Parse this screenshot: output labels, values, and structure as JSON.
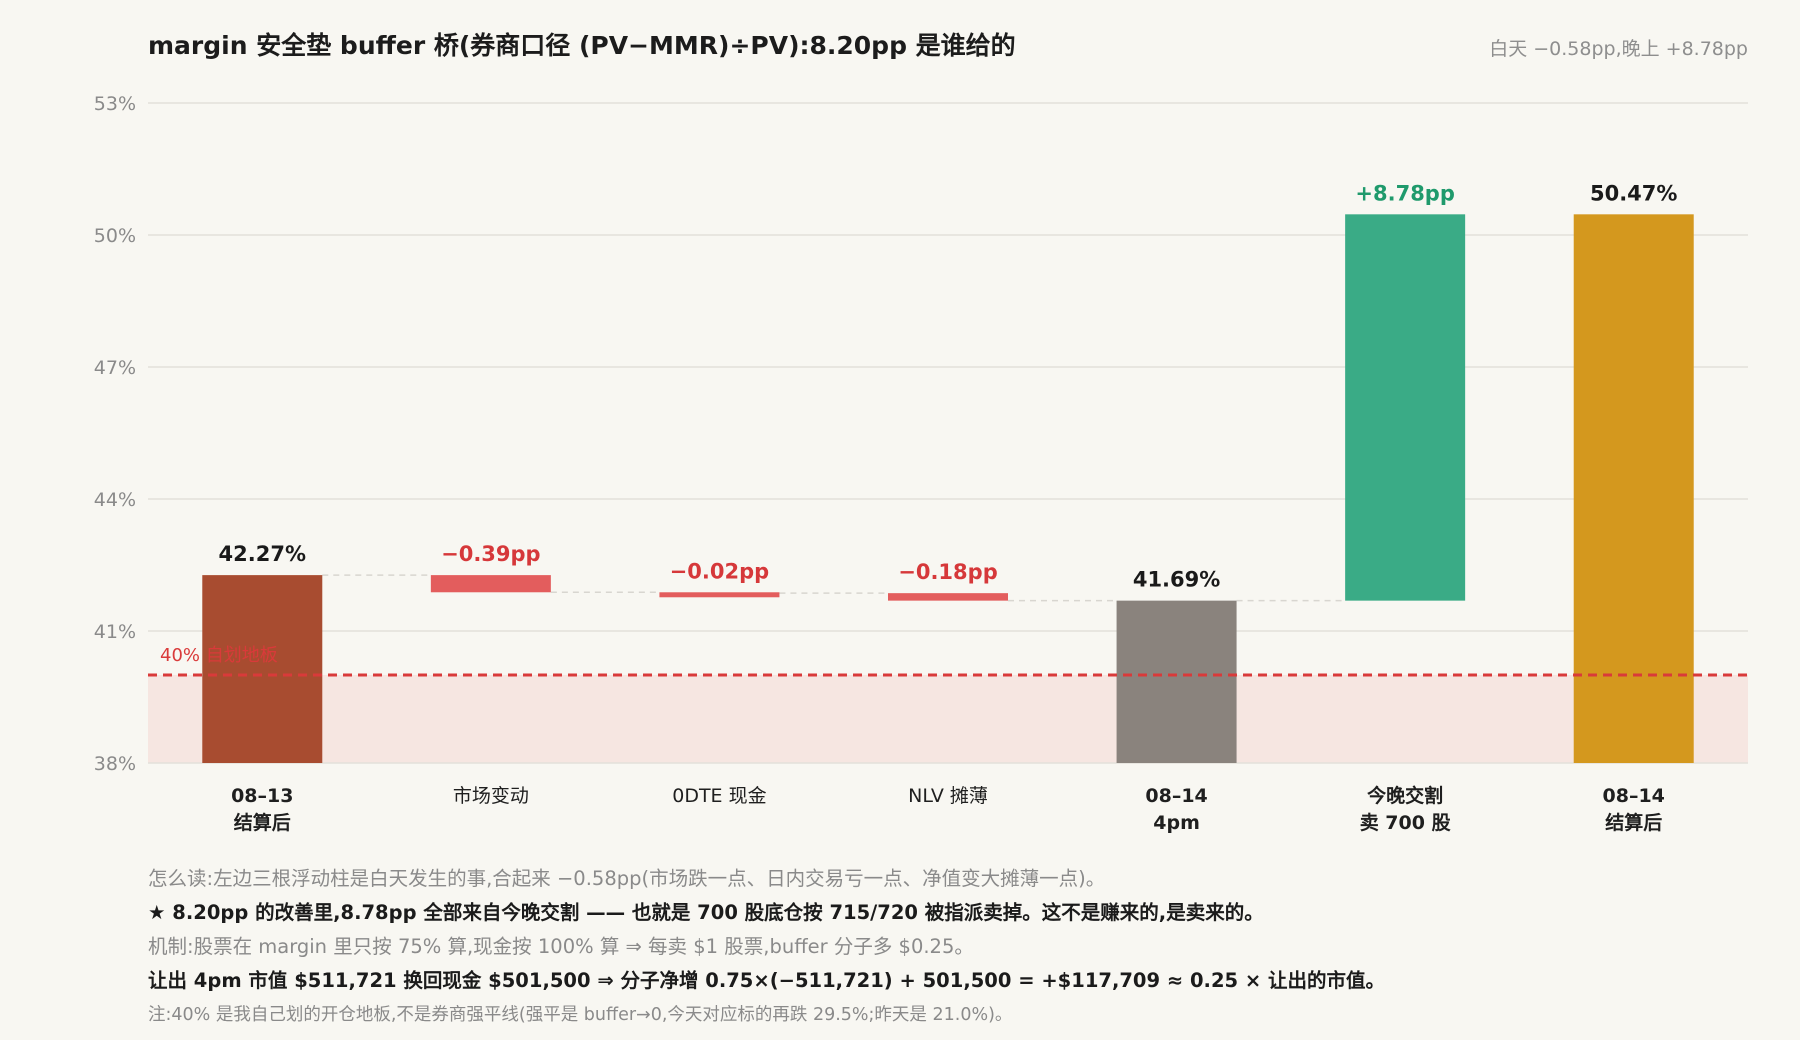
{
  "title": "margin 安全垫 buffer 桥(券商口径 (PV−MMR)÷PV):8.20pp 是谁给的",
  "subtitle": "白天 −0.58pp,晚上 +8.78pp",
  "chart_data": {
    "type": "waterfall",
    "ylim": [
      38,
      53
    ],
    "yticks": [
      "38%",
      "41%",
      "44%",
      "47%",
      "50%",
      "53%"
    ],
    "ytick_values": [
      38,
      41,
      44,
      47,
      50,
      53
    ],
    "reference_line": {
      "value": 40,
      "label": "40% 自划地板",
      "color": "#d93a3a"
    },
    "bars": [
      {
        "label": [
          "08–13",
          "结算后"
        ],
        "kind": "total",
        "start": 38,
        "end": 42.27,
        "value_label": "42.27%",
        "color": "#a84c30",
        "label_color": "#1a1a1a",
        "label_bold": true
      },
      {
        "label": [
          "市场变动"
        ],
        "kind": "delta",
        "start": 42.27,
        "end": 41.88,
        "value_label": "−0.39pp",
        "color": "#e35d5d",
        "label_color": "#d6383a",
        "label_bold": false
      },
      {
        "label": [
          "0DTE 现金"
        ],
        "kind": "delta",
        "start": 41.88,
        "end": 41.86,
        "value_label": "−0.02pp",
        "color": "#e35d5d",
        "label_color": "#d6383a",
        "label_bold": false
      },
      {
        "label": [
          "NLV 摊薄"
        ],
        "kind": "delta",
        "start": 41.86,
        "end": 41.69,
        "value_label": "−0.18pp",
        "color": "#e35d5d",
        "label_color": "#d6383a",
        "label_bold": false
      },
      {
        "label": [
          "08–14",
          "4pm"
        ],
        "kind": "total",
        "start": 38,
        "end": 41.69,
        "value_label": "41.69%",
        "color": "#8a837d",
        "label_color": "#1a1a1a",
        "label_bold": false
      },
      {
        "label": [
          "今晚交割",
          "卖 700 股"
        ],
        "kind": "delta",
        "start": 41.69,
        "end": 50.47,
        "value_label": "+8.78pp",
        "color": "#3aab86",
        "label_color": "#1f9a6c",
        "label_bold": true
      },
      {
        "label": [
          "08–14",
          "结算后"
        ],
        "kind": "total",
        "start": 38,
        "end": 50.47,
        "value_label": "50.47%",
        "color": "#d4981e",
        "label_color": "#1a1a1a",
        "label_bold": true
      }
    ]
  },
  "notes": {
    "line1": "怎么读:左边三根浮动柱是白天发生的事,合起来 −0.58pp(市场跌一点、日内交易亏一点、净值变大摊薄一点)。",
    "line2": "★ 8.20pp 的改善里,8.78pp 全部来自今晚交割 —— 也就是 700 股底仓按 715/720 被指派卖掉。这不是赚来的,是卖来的。",
    "line3": "机制:股票在 margin 里只按 75% 算,现金按 100% 算 ⇒ 每卖 $1 股票,buffer 分子多 $0.25。",
    "line4": "让出 4pm 市值 $511,721 换回现金 $501,500 ⇒ 分子净增 0.75×(−511,721) + 501,500 = +$117,709 ≈ 0.25 × 让出的市值。",
    "line5": "注:40% 是我自己划的开仓地板,不是券商强平线(强平是 buffer→0,今天对应标的再跌 29.5%;昨天是 21.0%)。"
  }
}
